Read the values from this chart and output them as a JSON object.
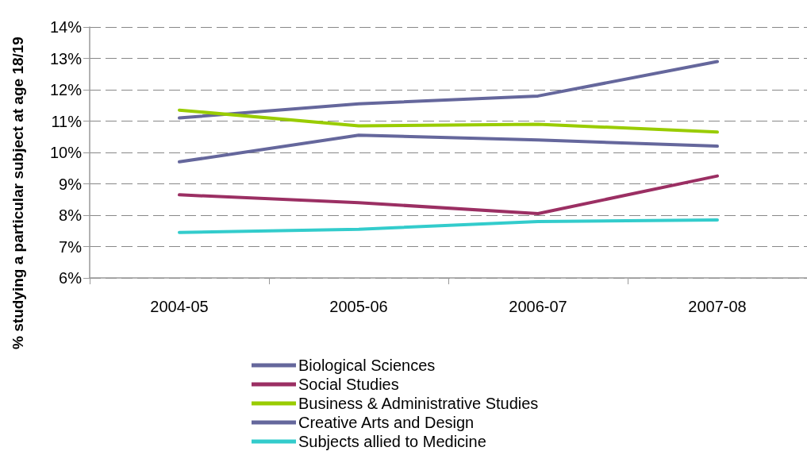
{
  "chart_data": {
    "type": "line",
    "ylabel": "% studying a particular subject at age 18/19",
    "categories": [
      "2004-05",
      "2005-06",
      "2006-07",
      "2007-08"
    ],
    "series": [
      {
        "name": "Biological Sciences",
        "color": "#65679c",
        "values": [
          11.1,
          11.55,
          11.8,
          12.9
        ]
      },
      {
        "name": "Social Studies",
        "color": "#9b2f63",
        "values": [
          8.65,
          8.4,
          8.05,
          9.25
        ]
      },
      {
        "name": "Business & Administrative Studies",
        "color": "#99cc00",
        "values": [
          11.35,
          10.85,
          10.9,
          10.65
        ]
      },
      {
        "name": "Creative Arts and Design",
        "color": "#65679c",
        "values": [
          9.7,
          10.55,
          10.4,
          10.2
        ]
      },
      {
        "name": "Subjects allied to Medicine",
        "color": "#33cccc",
        "values": [
          7.45,
          7.55,
          7.8,
          7.85
        ]
      }
    ],
    "ylim": [
      6,
      14
    ],
    "yticks": [
      {
        "value": 6,
        "label": "6%"
      },
      {
        "value": 7,
        "label": "7%"
      },
      {
        "value": 8,
        "label": "8%"
      },
      {
        "value": 9,
        "label": "9%"
      },
      {
        "value": 10,
        "label": "10%"
      },
      {
        "value": 11,
        "label": "11%"
      },
      {
        "value": 12,
        "label": "12%"
      },
      {
        "value": 13,
        "label": "13%"
      },
      {
        "value": 14,
        "label": "14%"
      }
    ],
    "grid": "y",
    "legend": "bottom",
    "marker": "none",
    "line_style": "solid"
  }
}
